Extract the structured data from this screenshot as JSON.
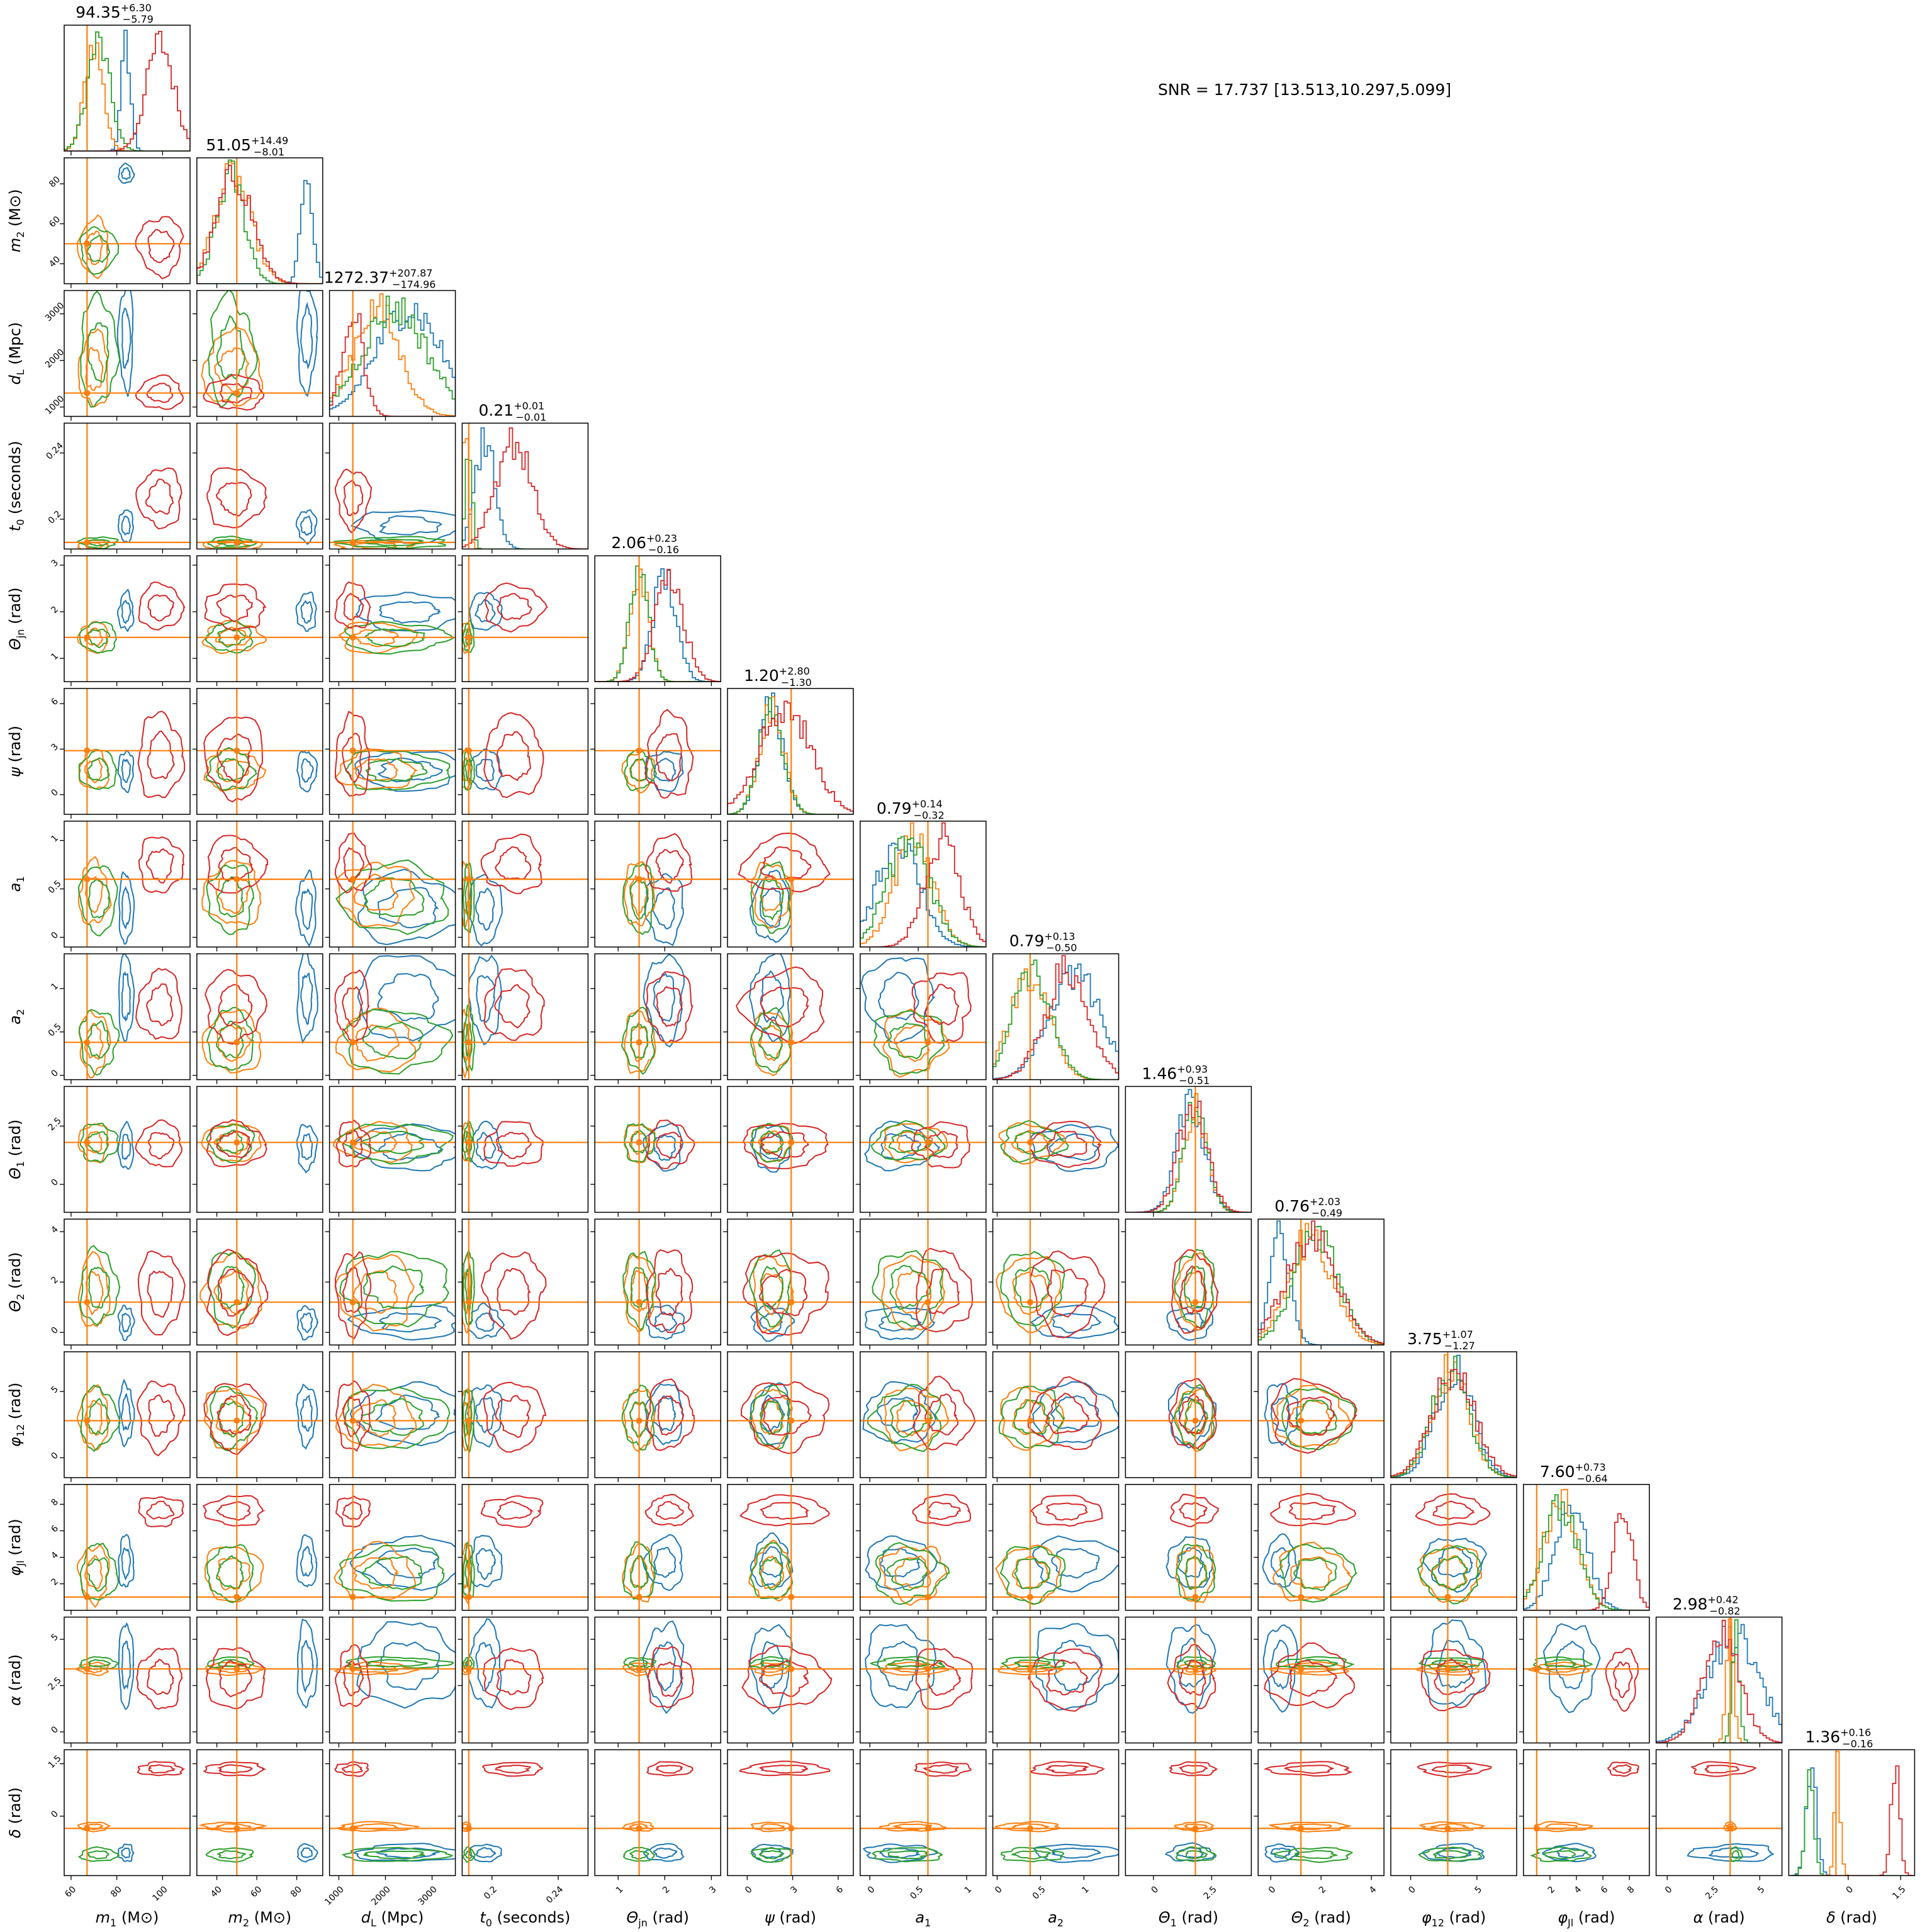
{
  "snr_text": "SNR = 17.737 [13.513,10.297,5.099]",
  "colors": {
    "h1": "#1f77b4",
    "h2": "#ff7f0e",
    "h3": "#2ca02c",
    "h4": "#d62728",
    "truth": "#ff7f0e"
  },
  "chart_data": {
    "type": "corner",
    "title": "",
    "grid": false,
    "legend": "none",
    "series": [
      {
        "color": "#1f77b4"
      },
      {
        "color": "#ff7f0e"
      },
      {
        "color": "#2ca02c"
      },
      {
        "color": "#d62728"
      }
    ],
    "parameters": [
      {
        "label": "m_1 (M_⊙)",
        "label_main": "m",
        "label_sub": "1",
        "label_unit": " (M⊙)",
        "range": [
          57,
          112
        ],
        "ticks": [
          60,
          80,
          100
        ],
        "truth": 67,
        "centers": [
          84,
          70,
          72,
          99
        ],
        "spreads": [
          2,
          4,
          5,
          6
        ],
        "summary": {
          "median": "94.35",
          "plus": "+6.30",
          "minus": "−5.79"
        }
      },
      {
        "label": "m_2 (M_⊙)",
        "label_main": "m",
        "label_sub": "2",
        "label_unit": " (M⊙)",
        "range": [
          30,
          93
        ],
        "ticks": [
          40,
          60,
          80
        ],
        "truth": 50,
        "centers": [
          85,
          48,
          47,
          49
        ],
        "spreads": [
          3,
          9,
          7,
          9
        ],
        "summary": {
          "median": "51.05",
          "plus": "+14.49",
          "minus": "−8.01"
        }
      },
      {
        "label": "d_L (Mpc)",
        "label_main": "d",
        "label_sub": "L",
        "label_unit": " (Mpc)",
        "range": [
          800,
          3500
        ],
        "ticks": [
          1000,
          2000,
          3000
        ],
        "truth": 1300,
        "centers": [
          2500,
          1800,
          2200,
          1300
        ],
        "spreads": [
          700,
          500,
          700,
          220
        ],
        "summary": {
          "median": "1272.37",
          "plus": "+207.87",
          "minus": "−174.96"
        }
      },
      {
        "label": "t_0 (seconds)",
        "label_main": "t",
        "label_sub": "0",
        "label_unit": " (seconds)",
        "range": [
          0.182,
          0.258
        ],
        "ticks": [
          0.2,
          0.24
        ],
        "truth": 0.186,
        "centers": [
          0.196,
          0.184,
          0.186,
          0.213
        ],
        "spreads": [
          0.006,
          0.002,
          0.002,
          0.011
        ],
        "summary": {
          "median": "0.21",
          "plus": "+0.01",
          "minus": "−0.01"
        }
      },
      {
        "label": "Θ_jn (rad)",
        "label_main": "Θ",
        "label_sub": "jn",
        "label_unit": " (rad)",
        "range": [
          0.5,
          3.2
        ],
        "ticks": [
          1,
          2,
          3
        ],
        "truth": 1.45,
        "centers": [
          2.0,
          1.45,
          1.45,
          2.1
        ],
        "spreads": [
          0.25,
          0.2,
          0.2,
          0.3
        ],
        "summary": {
          "median": "2.06",
          "plus": "+0.23",
          "minus": "−0.16"
        }
      },
      {
        "label": "ψ (rad)",
        "label_main": "ψ",
        "label_sub": "",
        "label_unit": " (rad)",
        "range": [
          -1.3,
          7.0
        ],
        "ticks": [
          0,
          3,
          6
        ],
        "truth": 2.9,
        "centers": [
          1.6,
          1.6,
          1.6,
          2.5
        ],
        "spreads": [
          0.8,
          0.8,
          0.8,
          1.7
        ],
        "summary": {
          "median": "1.20",
          "plus": "+2.80",
          "minus": "−1.30"
        }
      },
      {
        "label": "a_1",
        "label_main": "a",
        "label_sub": "1",
        "label_unit": "",
        "range": [
          -0.1,
          1.2
        ],
        "ticks": [
          0.0,
          0.5,
          1.0
        ],
        "truth": 0.6,
        "centers": [
          0.3,
          0.45,
          0.4,
          0.75
        ],
        "spreads": [
          0.22,
          0.2,
          0.22,
          0.18
        ],
        "summary": {
          "median": "0.79",
          "plus": "+0.14",
          "minus": "−0.32"
        }
      },
      {
        "label": "a_2",
        "label_main": "a",
        "label_sub": "2",
        "label_unit": "",
        "range": [
          -0.05,
          1.4
        ],
        "ticks": [
          0.0,
          0.5,
          1.0
        ],
        "truth": 0.38,
        "centers": [
          0.9,
          0.38,
          0.4,
          0.8
        ],
        "spreads": [
          0.3,
          0.22,
          0.22,
          0.25
        ],
        "summary": {
          "median": "0.79",
          "plus": "+0.13",
          "minus": "−0.50"
        }
      },
      {
        "label": "Θ_1 (rad)",
        "label_main": "Θ",
        "label_sub": "1",
        "label_unit": " (rad)",
        "range": [
          -1.2,
          4.2
        ],
        "ticks": [
          0.0,
          2.5
        ],
        "truth": 1.8,
        "centers": [
          1.6,
          1.8,
          1.8,
          1.7
        ],
        "spreads": [
          0.6,
          0.5,
          0.5,
          0.6
        ],
        "summary": {
          "median": "1.46",
          "plus": "+0.93",
          "minus": "−0.51"
        }
      },
      {
        "label": "Θ_2 (rad)",
        "label_main": "Θ",
        "label_sub": "2",
        "label_unit": " (rad)",
        "range": [
          -0.5,
          4.5
        ],
        "ticks": [
          0,
          2,
          4
        ],
        "truth": 1.2,
        "centers": [
          0.4,
          1.6,
          1.8,
          1.6
        ],
        "spreads": [
          0.4,
          0.9,
          0.9,
          1.0
        ],
        "summary": {
          "median": "0.76",
          "plus": "+2.03",
          "minus": "−0.49"
        }
      },
      {
        "label": "φ_12 (rad)",
        "label_main": "φ",
        "label_sub": "12",
        "label_unit": " (rad)",
        "range": [
          -1.5,
          8.0
        ],
        "ticks": [
          0,
          5
        ],
        "truth": 2.8,
        "centers": [
          3.3,
          3.0,
          3.0,
          3.2
        ],
        "spreads": [
          1.4,
          1.4,
          1.4,
          1.6
        ],
        "summary": {
          "median": "3.75",
          "plus": "+1.07",
          "minus": "−1.27"
        }
      },
      {
        "label": "φ_JL (rad)",
        "label_main": "φ",
        "label_sub": "Jl",
        "label_unit": " (rad)",
        "range": [
          0,
          9.5
        ],
        "ticks": [
          2,
          4,
          6,
          8
        ],
        "truth": 1.0,
        "centers": [
          3.6,
          2.8,
          2.8,
          7.5
        ],
        "spreads": [
          1.2,
          1.3,
          1.3,
          0.7
        ],
        "summary": {
          "median": "7.60",
          "plus": "+0.73",
          "minus": "−0.64"
        }
      },
      {
        "label": "α (rad)",
        "label_main": "α",
        "label_sub": "",
        "label_unit": " (rad)",
        "range": [
          -0.6,
          6.2
        ],
        "ticks": [
          0.0,
          2.5,
          5.0
        ],
        "truth": 3.4,
        "centers": [
          3.6,
          3.4,
          3.7,
          2.9
        ],
        "spreads": [
          1.4,
          0.2,
          0.2,
          1.0
        ],
        "summary": {
          "median": "2.98",
          "plus": "+0.42",
          "minus": "−0.82"
        }
      },
      {
        "label": "δ (rad)",
        "label_main": "δ",
        "label_sub": "",
        "label_unit": " (rad)",
        "range": [
          -1.7,
          1.9
        ],
        "ticks": [
          -0.0,
          1.5
        ],
        "truth": -0.35,
        "centers": [
          -1.05,
          -0.3,
          -1.1,
          1.35
        ],
        "spreads": [
          0.15,
          0.08,
          0.12,
          0.12
        ],
        "summary": {
          "median": "1.36",
          "plus": "+0.16",
          "minus": "−0.16"
        }
      }
    ]
  }
}
